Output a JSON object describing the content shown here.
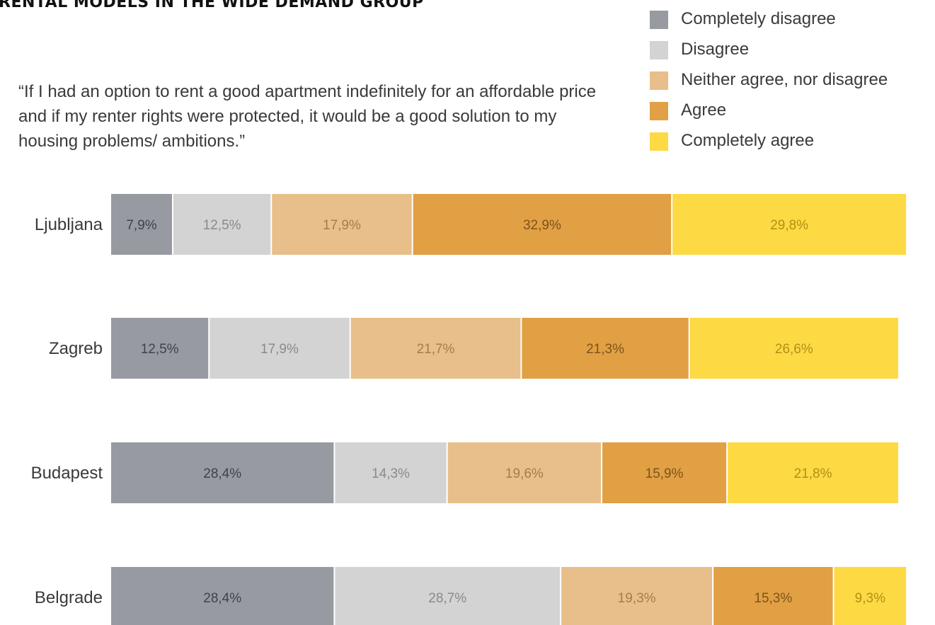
{
  "title": "RENTAL MODELS IN THE WIDE DEMAND GROUP",
  "quote": "“If I had an option to rent a good apartment indefinitely for an affordable price and if my renter rights were protected, it would be a good solution to my housing problems/ ambitions.”",
  "legend": [
    {
      "label": "Completely disagree",
      "color": "#979aa1"
    },
    {
      "label": "Disagree",
      "color": "#d3d3d3"
    },
    {
      "label": "Neither agree, nor disagree",
      "color": "#e8bf8a"
    },
    {
      "label": "Agree",
      "color": "#e0a043"
    },
    {
      "label": "Completely agree",
      "color": "#fdd943"
    }
  ],
  "chart_data": {
    "type": "bar",
    "orientation": "horizontal",
    "stacked": true,
    "categories": [
      "Ljubljana",
      "Zagreb",
      "Budapest",
      "Belgrade"
    ],
    "series": [
      {
        "name": "Completely disagree",
        "color": "#979aa1",
        "label_color": "#3f434a",
        "values": [
          7.9,
          12.5,
          28.4,
          28.4
        ],
        "labels": [
          "7,9%",
          "12,5%",
          "28,4%",
          "28,4%"
        ]
      },
      {
        "name": "Disagree",
        "color": "#d3d3d3",
        "label_color": "#8a8a8a",
        "values": [
          12.5,
          17.9,
          14.3,
          28.7
        ],
        "labels": [
          "12,5%",
          "17,9%",
          "14,3%",
          "28,7%"
        ]
      },
      {
        "name": "Neither agree, nor disagree",
        "color": "#e8bf8a",
        "label_color": "#a67c48",
        "values": [
          17.9,
          21.7,
          19.6,
          19.3
        ],
        "labels": [
          "17,9%",
          "21,7%",
          "19,6%",
          "19,3%"
        ]
      },
      {
        "name": "Agree",
        "color": "#e0a043",
        "label_color": "#7e531c",
        "values": [
          32.9,
          21.3,
          15.9,
          15.3
        ],
        "labels": [
          "32,9%",
          "21,3%",
          "15,9%",
          "15,3%"
        ]
      },
      {
        "name": "Completely agree",
        "color": "#fdd943",
        "label_color": "#b09016",
        "values": [
          29.8,
          26.6,
          21.8,
          9.3
        ],
        "labels": [
          "29,8%",
          "26,6%",
          "21,8%",
          "9,3%"
        ]
      }
    ],
    "xlim": [
      0,
      100
    ],
    "grid": false,
    "legend_position": "top-right"
  }
}
